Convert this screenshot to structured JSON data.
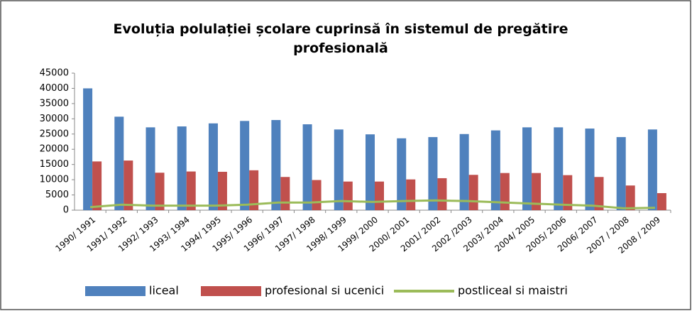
{
  "chart_data": {
    "type": "bar",
    "title": "Evoluția polulației școlare cuprinsă în sistemul de pregătire profesională",
    "categories": [
      "1990/ 1991",
      "1991/ 1992",
      "1992/ 1993",
      "1993/ 1994",
      "1994/ 1995",
      "1995/ 1996",
      "1996/ 1997",
      "1997/ 1998",
      "1998/ 1999",
      "1999/ 2000",
      "2000/ 2001",
      "2001/ 2002",
      "2002 /2003",
      "2003/ 2004",
      "2004/ 2005",
      "2005/ 2006",
      "2006/ 2007",
      "2007 / 2008",
      "2008 / 2009"
    ],
    "series": [
      {
        "name": "liceal",
        "type": "bar",
        "color": "#4f81bd",
        "values": [
          40000,
          30700,
          27200,
          27500,
          28500,
          29300,
          29600,
          28200,
          26500,
          24900,
          23600,
          24000,
          25000,
          26200,
          27200,
          27200,
          26800,
          24000,
          26500
        ]
      },
      {
        "name": "profesional si ucenici",
        "type": "bar",
        "color": "#c0504d",
        "values": [
          16000,
          16300,
          12300,
          12700,
          12600,
          13100,
          10900,
          9900,
          9400,
          9400,
          10100,
          10500,
          11600,
          12200,
          12200,
          11500,
          10900,
          8100,
          5600
        ]
      },
      {
        "name": "postliceal si maistri",
        "type": "line",
        "color": "#9bbb59",
        "values": [
          1000,
          1800,
          1500,
          1500,
          1500,
          1800,
          2500,
          2500,
          3000,
          2700,
          3000,
          3200,
          3000,
          2600,
          2200,
          1800,
          1500,
          600,
          800
        ]
      }
    ],
    "ylim": [
      0,
      45000
    ],
    "yticks": [
      0,
      5000,
      10000,
      15000,
      20000,
      25000,
      30000,
      35000,
      40000,
      45000
    ],
    "grid": false,
    "legend": "bottom"
  }
}
